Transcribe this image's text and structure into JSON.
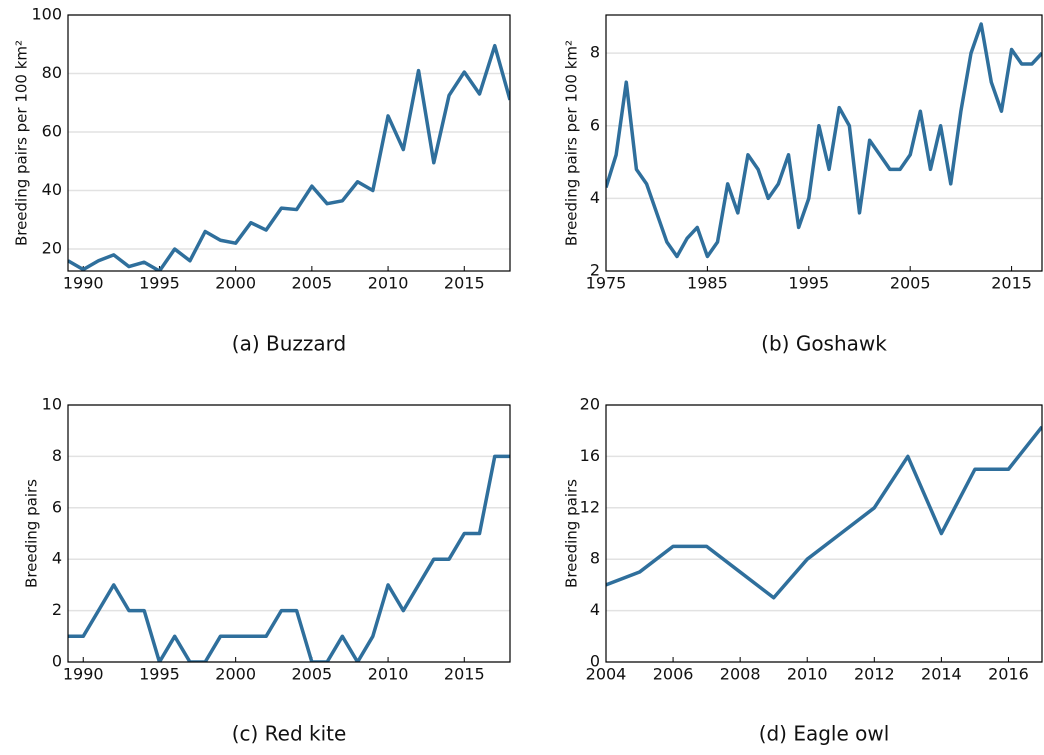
{
  "chart_data": [
    {
      "type": "line",
      "title": "(a) Buzzard",
      "ylabel": "Breeding pairs per 100 km²",
      "color": "#2f6f9c",
      "grid": true,
      "x": [
        1989,
        1990,
        1991,
        1992,
        1993,
        1994,
        1995,
        1996,
        1997,
        1998,
        1999,
        2000,
        2001,
        2002,
        2003,
        2004,
        2005,
        2006,
        2007,
        2008,
        2009,
        2010,
        2011,
        2012,
        2013,
        2014,
        2015,
        2016,
        2017,
        2018
      ],
      "values": [
        16,
        13,
        16,
        18,
        14,
        15.5,
        12.5,
        20,
        16,
        26,
        23,
        22,
        29,
        26.5,
        34,
        33.5,
        41.5,
        35.5,
        36.5,
        43,
        40,
        65.5,
        54,
        81,
        49.5,
        72.5,
        80.5,
        73,
        89.5,
        71
      ],
      "xlim": [
        1989,
        2018
      ],
      "xticks": [
        1990,
        1995,
        2000,
        2005,
        2010,
        2015
      ],
      "ylim": [
        12.5,
        100
      ],
      "yticks": [
        20,
        40,
        60,
        80,
        100
      ]
    },
    {
      "type": "line",
      "title": "(b) Goshawk",
      "ylabel": "Breeding pairs per 100 km²",
      "color": "#2f6f9c",
      "grid": true,
      "x": [
        1975,
        1976,
        1977,
        1978,
        1979,
        1980,
        1981,
        1982,
        1983,
        1984,
        1985,
        1986,
        1987,
        1988,
        1989,
        1990,
        1991,
        1992,
        1993,
        1994,
        1995,
        1996,
        1997,
        1998,
        1999,
        2000,
        2001,
        2002,
        2003,
        2004,
        2005,
        2006,
        2007,
        2008,
        2009,
        2010,
        2011,
        2012,
        2013,
        2014,
        2015,
        2016,
        2017,
        2018
      ],
      "values": [
        4.3,
        5.2,
        7.2,
        4.8,
        4.4,
        3.6,
        2.8,
        2.4,
        2.9,
        3.2,
        2.4,
        2.8,
        4.4,
        3.6,
        5.2,
        4.8,
        4.0,
        4.4,
        5.2,
        3.2,
        4.0,
        6.0,
        4.8,
        6.5,
        6.0,
        3.6,
        5.6,
        5.2,
        4.8,
        4.8,
        5.2,
        6.4,
        4.8,
        6.0,
        4.4,
        6.4,
        8.0,
        8.8,
        7.2,
        6.4,
        8.1,
        7.7,
        7.7,
        8.0
      ],
      "xlim": [
        1975,
        2018
      ],
      "xticks": [
        1975,
        1985,
        1995,
        2005,
        2015
      ],
      "ylim": [
        2,
        9.05
      ],
      "yticks": [
        2,
        4,
        6,
        8
      ]
    },
    {
      "type": "line",
      "title": "(c) Red kite",
      "ylabel": "Breeding pairs",
      "color": "#2f6f9c",
      "grid": true,
      "x": [
        1989,
        1990,
        1991,
        1992,
        1993,
        1994,
        1995,
        1996,
        1997,
        1998,
        1999,
        2000,
        2001,
        2002,
        2003,
        2004,
        2005,
        2006,
        2007,
        2008,
        2009,
        2010,
        2011,
        2012,
        2013,
        2014,
        2015,
        2016,
        2017,
        2018
      ],
      "values": [
        1,
        1,
        2,
        3,
        2,
        2,
        0,
        1,
        0,
        0,
        1,
        1,
        1,
        1,
        2,
        2,
        0,
        0,
        1,
        0,
        1,
        3,
        2,
        3,
        4,
        4,
        5,
        5,
        8,
        8
      ],
      "xlim": [
        1989,
        2018
      ],
      "xticks": [
        1990,
        1995,
        2000,
        2005,
        2010,
        2015
      ],
      "ylim": [
        0,
        10
      ],
      "yticks": [
        0,
        2,
        4,
        6,
        8,
        10
      ]
    },
    {
      "type": "line",
      "title": "(d) Eagle owl",
      "ylabel": "Breeding pairs",
      "color": "#2f6f9c",
      "grid": true,
      "x": [
        2004,
        2005,
        2006,
        2007,
        2008,
        2009,
        2010,
        2011,
        2012,
        2013,
        2014,
        2015,
        2016,
        2017
      ],
      "values": [
        6,
        7,
        9,
        9,
        7,
        5,
        8,
        10,
        12,
        16,
        10,
        15,
        15,
        18.3
      ],
      "xlim": [
        2004,
        2017
      ],
      "xticks": [
        2004,
        2006,
        2008,
        2010,
        2012,
        2014,
        2016
      ],
      "ylim": [
        0,
        20
      ],
      "yticks": [
        0,
        4,
        8,
        12,
        16,
        20
      ]
    }
  ]
}
